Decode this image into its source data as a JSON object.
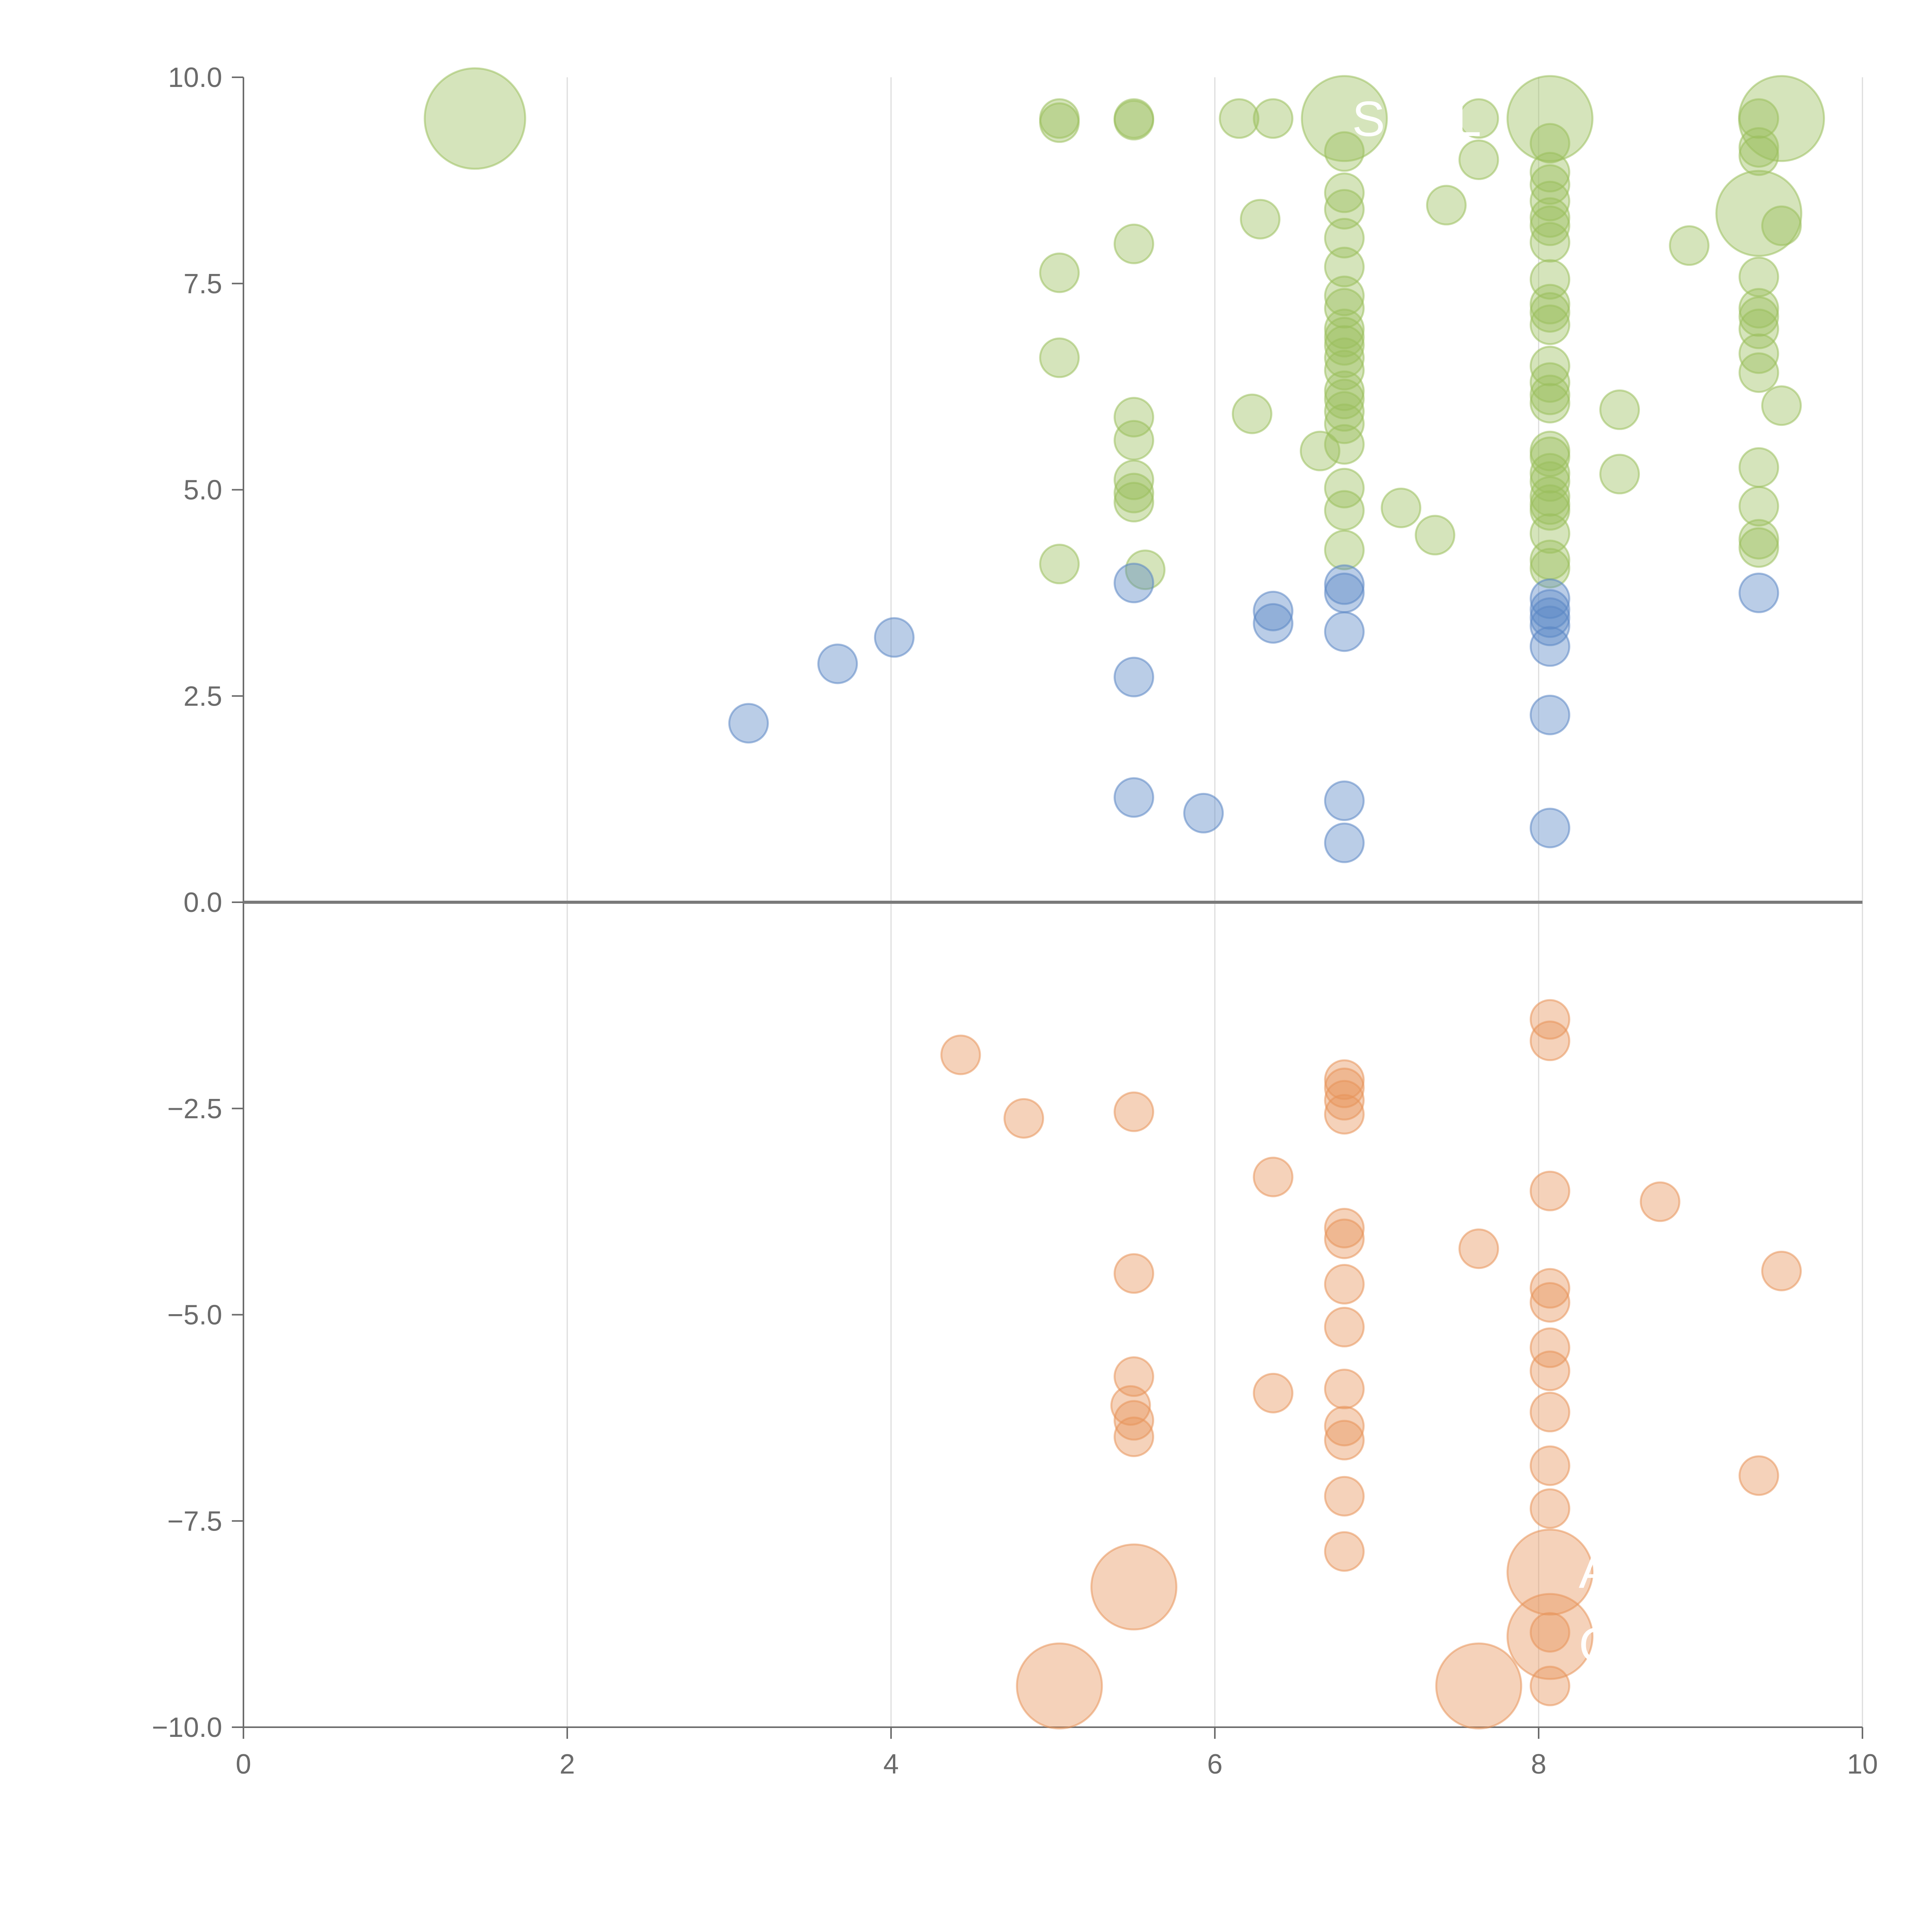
{
  "chart_data": {
    "type": "scatter",
    "title": "",
    "xlabel": "",
    "ylabel": "",
    "xlim": [
      0,
      10
    ],
    "ylim": [
      -10,
      10
    ],
    "x_ticks": [
      "0",
      "2",
      "4",
      "6",
      "8",
      "10"
    ],
    "y_ticks": [
      "10.0",
      "7.5",
      "5.0",
      "2.5",
      "0.0",
      "−2.5",
      "−5.0",
      "−7.5",
      "−10.0"
    ],
    "grid": "vertical",
    "legend": "none",
    "colors": {
      "green": "#9bbf5c",
      "blue": "#5b87c5",
      "orange": "#e8945a",
      "axis": "#6b6b6b",
      "grid": "#dcdcdc"
    },
    "annotations": [
      {
        "text": "SHEL",
        "x": 6.8,
        "y": 9.5
      },
      {
        "text": "A",
        "x": 8.2,
        "y": -8.1
      },
      {
        "text": "G",
        "x": 8.2,
        "y": -9.0
      }
    ],
    "series": [
      {
        "color": "green",
        "points": [
          [
            1.43,
            9.5,
            2.6
          ],
          [
            5.04,
            9.5,
            1
          ],
          [
            5.04,
            9.45,
            1
          ],
          [
            5.5,
            9.5,
            1
          ],
          [
            5.5,
            9.48,
            1
          ],
          [
            6.15,
            9.5,
            1
          ],
          [
            6.36,
            9.5,
            1
          ],
          [
            6.8,
            9.5,
            2.2
          ],
          [
            6.8,
            9.1,
            1
          ],
          [
            7.63,
            9.5,
            1
          ],
          [
            8.07,
            9.5,
            2.2
          ],
          [
            8.07,
            9.2,
            1
          ],
          [
            9.36,
            9.5,
            1
          ],
          [
            9.5,
            9.5,
            2.2
          ],
          [
            9.36,
            9.15,
            1
          ],
          [
            9.36,
            9.05,
            1
          ],
          [
            7.63,
            9.0,
            1
          ],
          [
            8.07,
            8.85,
            1
          ],
          [
            8.07,
            8.7,
            1
          ],
          [
            8.07,
            8.5,
            1
          ],
          [
            6.8,
            8.6,
            1
          ],
          [
            6.8,
            8.4,
            1
          ],
          [
            7.43,
            8.45,
            1
          ],
          [
            6.28,
            8.28,
            1
          ],
          [
            8.07,
            8.3,
            1
          ],
          [
            8.07,
            8.2,
            1
          ],
          [
            9.36,
            8.35,
            2.2
          ],
          [
            9.5,
            8.2,
            1
          ],
          [
            6.8,
            8.05,
            1
          ],
          [
            8.07,
            8.0,
            1
          ],
          [
            5.5,
            7.98,
            1
          ],
          [
            8.93,
            7.96,
            1
          ],
          [
            6.8,
            7.7,
            1
          ],
          [
            5.04,
            7.63,
            1
          ],
          [
            8.07,
            7.55,
            1
          ],
          [
            9.36,
            7.58,
            1
          ],
          [
            6.8,
            7.35,
            1
          ],
          [
            6.8,
            7.2,
            1
          ],
          [
            8.07,
            7.25,
            1
          ],
          [
            8.07,
            7.15,
            1
          ],
          [
            9.36,
            7.2,
            1
          ],
          [
            9.36,
            7.1,
            1
          ],
          [
            8.07,
            7.0,
            1
          ],
          [
            6.8,
            6.95,
            1
          ],
          [
            6.8,
            6.85,
            1
          ],
          [
            9.36,
            6.95,
            1
          ],
          [
            6.8,
            6.75,
            1
          ],
          [
            6.8,
            6.6,
            1
          ],
          [
            5.04,
            6.6,
            1
          ],
          [
            9.36,
            6.65,
            1
          ],
          [
            6.8,
            6.45,
            1
          ],
          [
            8.07,
            6.5,
            1
          ],
          [
            8.07,
            6.3,
            1
          ],
          [
            9.36,
            6.42,
            1
          ],
          [
            6.8,
            6.2,
            1
          ],
          [
            6.8,
            6.1,
            1
          ],
          [
            8.07,
            6.15,
            1
          ],
          [
            8.07,
            6.05,
            1
          ],
          [
            9.5,
            6.02,
            1
          ],
          [
            8.5,
            5.97,
            1
          ],
          [
            6.8,
            5.95,
            1
          ],
          [
            6.23,
            5.92,
            1
          ],
          [
            5.5,
            5.88,
            1
          ],
          [
            6.8,
            5.8,
            1
          ],
          [
            5.5,
            5.6,
            1
          ],
          [
            6.8,
            5.55,
            1
          ],
          [
            6.65,
            5.47,
            1
          ],
          [
            8.07,
            5.47,
            1
          ],
          [
            8.07,
            5.4,
            1
          ],
          [
            9.36,
            5.27,
            1
          ],
          [
            8.5,
            5.19,
            1
          ],
          [
            8.07,
            5.2,
            1
          ],
          [
            8.07,
            5.1,
            1
          ],
          [
            5.5,
            5.12,
            1
          ],
          [
            6.8,
            5.02,
            1
          ],
          [
            5.5,
            4.96,
            1
          ],
          [
            8.07,
            4.92,
            1
          ],
          [
            5.5,
            4.85,
            1
          ],
          [
            8.07,
            4.82,
            1
          ],
          [
            9.36,
            4.8,
            1
          ],
          [
            7.15,
            4.78,
            1
          ],
          [
            6.8,
            4.75,
            1
          ],
          [
            8.07,
            4.75,
            1
          ],
          [
            8.07,
            4.47,
            1
          ],
          [
            9.36,
            4.4,
            1
          ],
          [
            7.36,
            4.45,
            1
          ],
          [
            9.36,
            4.3,
            1
          ],
          [
            6.8,
            4.27,
            1
          ],
          [
            8.07,
            4.15,
            1
          ],
          [
            5.04,
            4.1,
            1
          ],
          [
            8.07,
            4.05,
            1
          ],
          [
            5.57,
            4.03,
            1
          ]
        ]
      },
      {
        "color": "blue",
        "points": [
          [
            6.8,
            3.85,
            1
          ],
          [
            6.8,
            3.75,
            1
          ],
          [
            5.5,
            3.87,
            1
          ],
          [
            9.36,
            3.75,
            1
          ],
          [
            8.07,
            3.68,
            1
          ],
          [
            8.07,
            3.55,
            1
          ],
          [
            6.36,
            3.53,
            1
          ],
          [
            8.07,
            3.45,
            1
          ],
          [
            8.07,
            3.35,
            1
          ],
          [
            6.36,
            3.38,
            1
          ],
          [
            6.8,
            3.28,
            1
          ],
          [
            4.02,
            3.21,
            1
          ],
          [
            8.07,
            3.1,
            1
          ],
          [
            3.67,
            2.89,
            1
          ],
          [
            5.5,
            2.73,
            1
          ],
          [
            8.07,
            2.27,
            1
          ],
          [
            3.12,
            2.17,
            1
          ],
          [
            5.5,
            1.27,
            1
          ],
          [
            6.8,
            1.23,
            1
          ],
          [
            5.93,
            1.08,
            1
          ],
          [
            8.07,
            0.9,
            1
          ],
          [
            6.8,
            0.72,
            1
          ]
        ]
      },
      {
        "color": "orange",
        "points": [
          [
            8.07,
            -1.42,
            1
          ],
          [
            8.07,
            -1.68,
            1
          ],
          [
            4.43,
            -1.85,
            1
          ],
          [
            6.8,
            -2.15,
            1
          ],
          [
            6.8,
            -2.25,
            1
          ],
          [
            6.8,
            -2.4,
            1
          ],
          [
            5.5,
            -2.54,
            1
          ],
          [
            6.8,
            -2.57,
            1
          ],
          [
            4.82,
            -2.62,
            1
          ],
          [
            6.36,
            -3.33,
            1
          ],
          [
            8.07,
            -3.5,
            1
          ],
          [
            8.75,
            -3.63,
            1
          ],
          [
            6.8,
            -3.95,
            1
          ],
          [
            6.8,
            -4.08,
            1
          ],
          [
            7.63,
            -4.2,
            1
          ],
          [
            5.5,
            -4.5,
            1
          ],
          [
            9.5,
            -4.47,
            1
          ],
          [
            6.8,
            -4.63,
            1
          ],
          [
            8.07,
            -4.68,
            1
          ],
          [
            8.07,
            -4.85,
            1
          ],
          [
            6.8,
            -5.15,
            1
          ],
          [
            8.07,
            -5.4,
            1
          ],
          [
            8.07,
            -5.68,
            1
          ],
          [
            5.5,
            -5.75,
            1
          ],
          [
            6.8,
            -5.9,
            1
          ],
          [
            6.36,
            -5.95,
            1
          ],
          [
            5.48,
            -6.1,
            1
          ],
          [
            8.07,
            -6.18,
            1
          ],
          [
            5.5,
            -6.28,
            1
          ],
          [
            6.8,
            -6.35,
            1
          ],
          [
            5.5,
            -6.48,
            1
          ],
          [
            6.8,
            -6.52,
            1
          ],
          [
            8.07,
            -6.83,
            1
          ],
          [
            9.36,
            -6.95,
            1
          ],
          [
            6.8,
            -7.2,
            1
          ],
          [
            8.07,
            -7.35,
            1
          ],
          [
            6.8,
            -7.87,
            1
          ],
          [
            8.07,
            -8.12,
            2.2
          ],
          [
            5.5,
            -8.3,
            2.2
          ],
          [
            8.07,
            -8.9,
            2.2
          ],
          [
            8.07,
            -8.85,
            1
          ],
          [
            5.04,
            -9.5,
            2.2
          ],
          [
            7.63,
            -9.5,
            2.2
          ],
          [
            8.07,
            -9.5,
            1
          ]
        ]
      }
    ]
  }
}
